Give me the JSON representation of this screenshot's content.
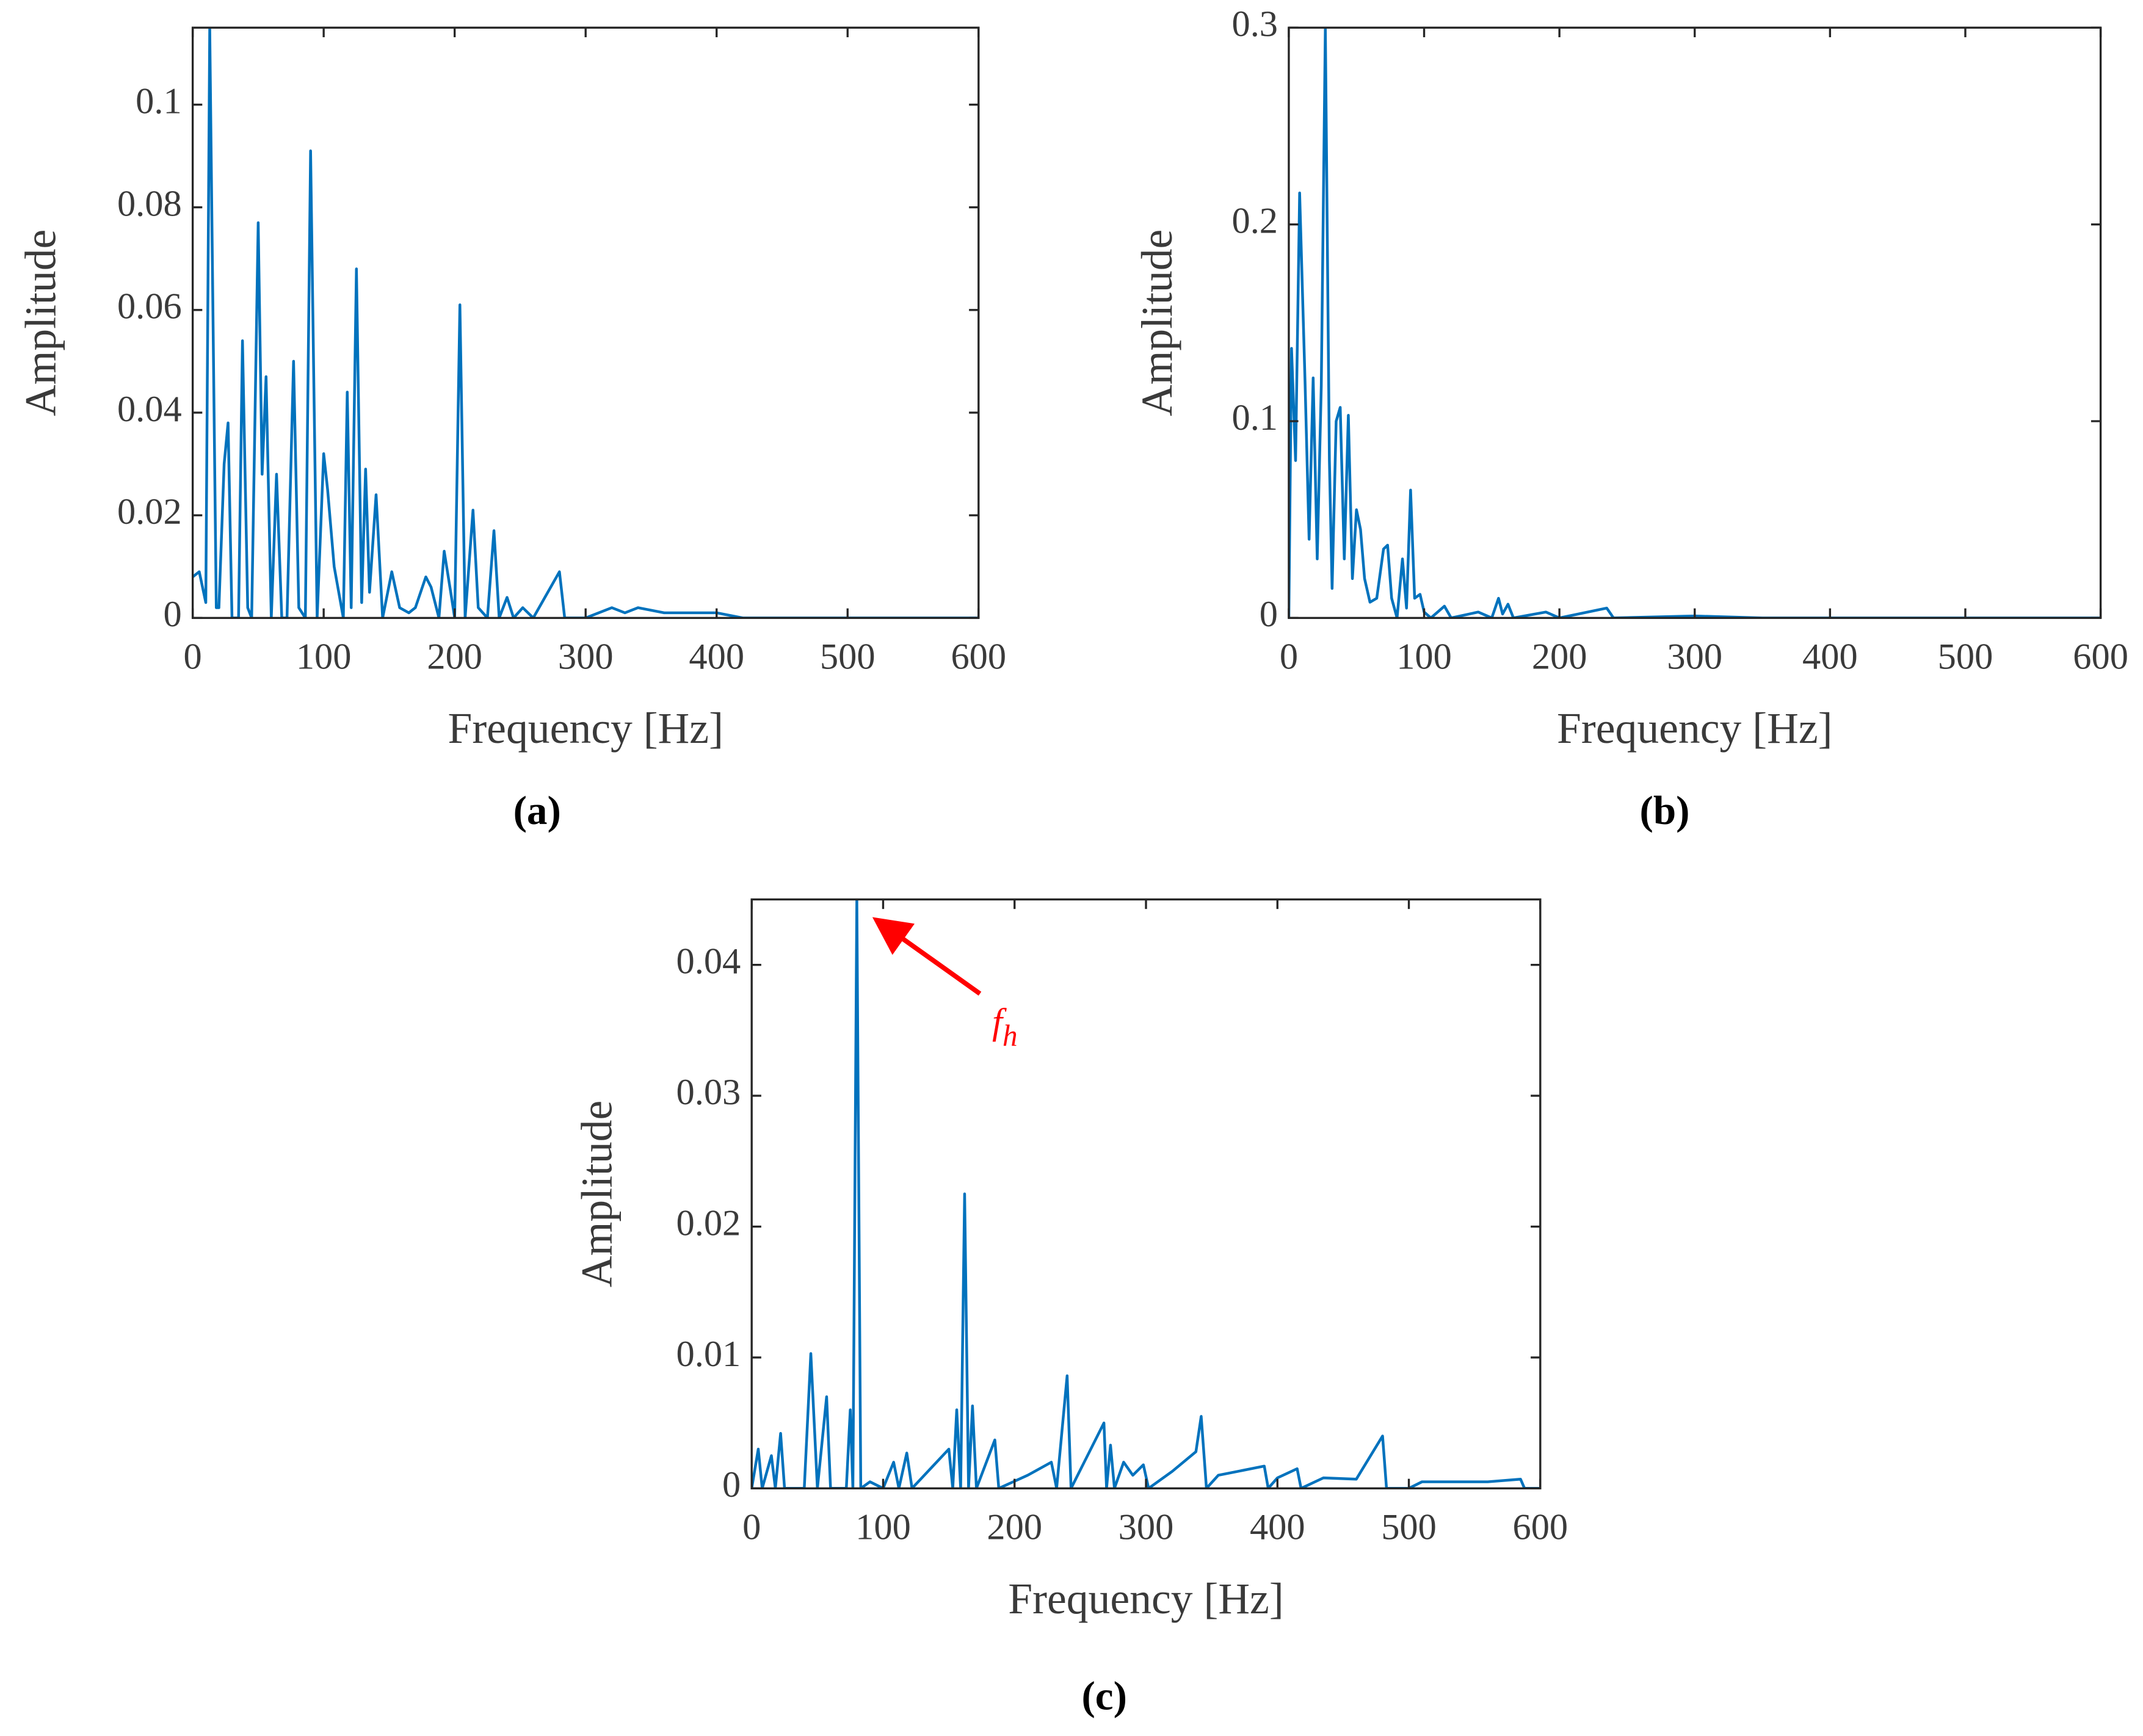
{
  "chart_data": [
    {
      "type": "line",
      "xlabel": "Frequency [Hz]",
      "ylabel": "Amplitude",
      "panel_label": "(a)",
      "color": "#0072bd",
      "xlim": [
        0,
        600
      ],
      "xticks": [
        0,
        100,
        200,
        300,
        400,
        500,
        600
      ],
      "ylim": [
        0,
        0.115
      ],
      "yticks": [
        0,
        0.02,
        0.04,
        0.06,
        0.08,
        0.1
      ],
      "x": [
        0,
        5,
        10,
        13,
        18,
        20,
        24,
        27,
        30,
        35,
        38,
        42,
        45,
        50,
        53,
        56,
        60,
        64,
        68,
        72,
        77,
        81,
        86,
        90,
        95,
        100,
        103,
        108,
        115,
        118,
        121,
        125,
        129,
        132,
        135,
        140,
        145,
        152,
        158,
        165,
        170,
        178,
        182,
        188,
        192,
        197,
        200,
        204,
        208,
        214,
        218,
        225,
        230,
        234,
        240,
        245,
        252,
        260,
        280,
        284,
        300,
        320,
        330,
        340,
        360,
        400,
        420,
        600
      ],
      "values": [
        0.008,
        0.009,
        0.003,
        0.115,
        0.002,
        0.002,
        0.03,
        0.038,
        0,
        0,
        0.054,
        0.002,
        0,
        0.077,
        0.028,
        0.047,
        0,
        0.028,
        0,
        0,
        0.05,
        0.002,
        0,
        0.091,
        0,
        0.032,
        0.025,
        0.01,
        0,
        0.044,
        0.002,
        0.068,
        0.003,
        0.029,
        0.005,
        0.024,
        0,
        0.009,
        0.002,
        0.001,
        0.002,
        0.008,
        0.006,
        0,
        0.013,
        0.005,
        0,
        0.061,
        0,
        0.021,
        0.002,
        0,
        0.017,
        0,
        0.004,
        0,
        0.002,
        0,
        0.009,
        0,
        0,
        0.002,
        0.001,
        0.002,
        0.001,
        0.001,
        0,
        0
      ]
    },
    {
      "type": "line",
      "xlabel": "Frequency [Hz]",
      "ylabel": "Amplitude",
      "panel_label": "(b)",
      "color": "#0072bd",
      "xlim": [
        0,
        600
      ],
      "xticks": [
        0,
        100,
        200,
        300,
        400,
        500,
        600
      ],
      "ylim": [
        0,
        0.3
      ],
      "yticks": [
        0,
        0.1,
        0.2,
        0.3
      ],
      "x": [
        0,
        2,
        5,
        8,
        12,
        15,
        18,
        21,
        24,
        27,
        30,
        32,
        35,
        38,
        41,
        44,
        47,
        50,
        53,
        56,
        60,
        65,
        70,
        73,
        76,
        80,
        84,
        87,
        90,
        93,
        97,
        100,
        105,
        115,
        120,
        140,
        150,
        155,
        158,
        162,
        166,
        190,
        200,
        235,
        240,
        300,
        350,
        600
      ],
      "values": [
        0,
        0.137,
        0.08,
        0.216,
        0.12,
        0.04,
        0.122,
        0.03,
        0.118,
        0.3,
        0.08,
        0.015,
        0.1,
        0.107,
        0.03,
        0.103,
        0.02,
        0.055,
        0.045,
        0.02,
        0.008,
        0.01,
        0.035,
        0.037,
        0.01,
        0,
        0.03,
        0.005,
        0.065,
        0.01,
        0.012,
        0.003,
        0,
        0.006,
        0,
        0.003,
        0,
        0.01,
        0.002,
        0.007,
        0,
        0.003,
        0,
        0.005,
        0,
        0.001,
        0,
        0
      ]
    },
    {
      "type": "line",
      "xlabel": "Frequency [Hz]",
      "ylabel": "Amplitude",
      "panel_label": "(c)",
      "color": "#0072bd",
      "xlim": [
        0,
        600
      ],
      "xticks": [
        0,
        100,
        200,
        300,
        400,
        500,
        600
      ],
      "ylim": [
        0,
        0.045
      ],
      "yticks": [
        0,
        0.01,
        0.02,
        0.03,
        0.04
      ],
      "annotation": {
        "text": "f",
        "subscript": "h",
        "color": "#ff0000"
      },
      "x": [
        0,
        5,
        8,
        15,
        18,
        22,
        25,
        40,
        45,
        50,
        57,
        60,
        72,
        75,
        77,
        80,
        83,
        90,
        100,
        108,
        112,
        118,
        122,
        150,
        153,
        156,
        159,
        162,
        165,
        168,
        171,
        185,
        188,
        210,
        228,
        232,
        240,
        243,
        268,
        270,
        273,
        276,
        283,
        290,
        298,
        302,
        320,
        338,
        342,
        346,
        355,
        390,
        393,
        400,
        415,
        418,
        435,
        460,
        480,
        483,
        500,
        510,
        530,
        560,
        585,
        588,
        600
      ],
      "values": [
        0,
        0.003,
        0,
        0.0025,
        0,
        0.0042,
        0,
        0,
        0.0103,
        0,
        0.007,
        0,
        0,
        0.006,
        0,
        0.045,
        0,
        0.0005,
        0,
        0.002,
        0,
        0.0027,
        0,
        0.003,
        0,
        0.006,
        0,
        0.0225,
        0,
        0.0063,
        0,
        0.0037,
        0,
        0.001,
        0.002,
        0,
        0.0086,
        0,
        0.005,
        0,
        0.0033,
        0,
        0.002,
        0.001,
        0.0018,
        0,
        0.0013,
        0.0028,
        0.0055,
        0,
        0.001,
        0.0017,
        0,
        0.0008,
        0.0015,
        0,
        0.0008,
        0.0007,
        0.004,
        0,
        0,
        0.0005,
        0.0005,
        0.0005,
        0.0007,
        0,
        0
      ]
    }
  ]
}
